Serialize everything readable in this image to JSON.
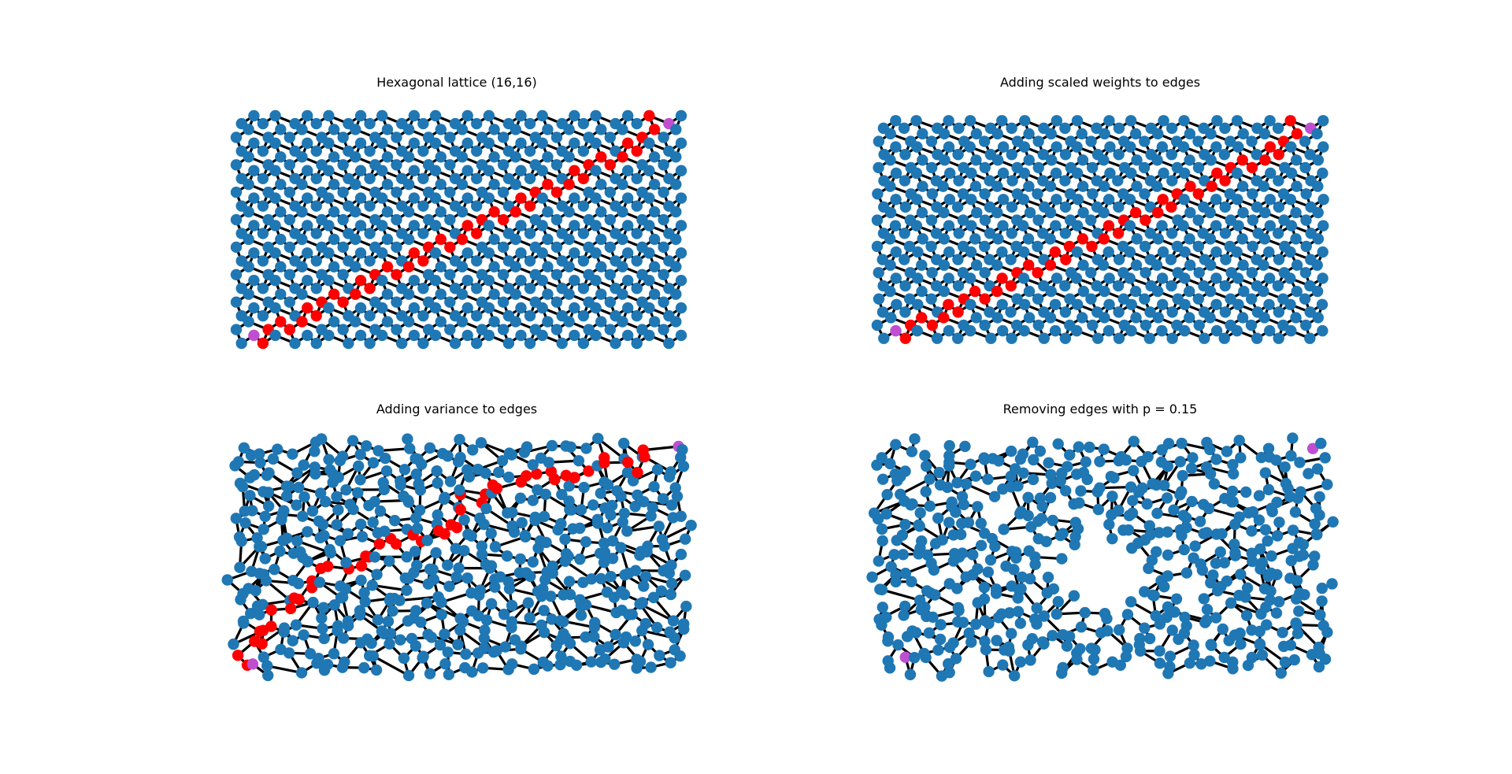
{
  "figure": {
    "panels": [
      {
        "id": "p1",
        "title": "Hexagonal lattice (16,16)",
        "lattice": {
          "rows": 16,
          "cols": 16
        },
        "distortion": "none",
        "edge_removal_probability": 0
      },
      {
        "id": "p2",
        "title": "Adding scaled weights to edges",
        "lattice": {
          "rows": 16,
          "cols": 16
        },
        "distortion": "scaled",
        "edge_removal_probability": 0
      },
      {
        "id": "p3",
        "title": "Adding variance to edges",
        "lattice": {
          "rows": 16,
          "cols": 16
        },
        "distortion": "variance",
        "edge_removal_probability": 0
      },
      {
        "id": "p4",
        "title": "Removing edges with p = 0.15",
        "lattice": {
          "rows": 16,
          "cols": 16
        },
        "distortion": "variance",
        "edge_removal_probability": 0.15
      }
    ],
    "colors": {
      "node": "#1f77b4",
      "path_node": "#ff0000",
      "endpoint_node": "#bf4fd0",
      "edge": "#000000",
      "background": "#ffffff"
    }
  }
}
